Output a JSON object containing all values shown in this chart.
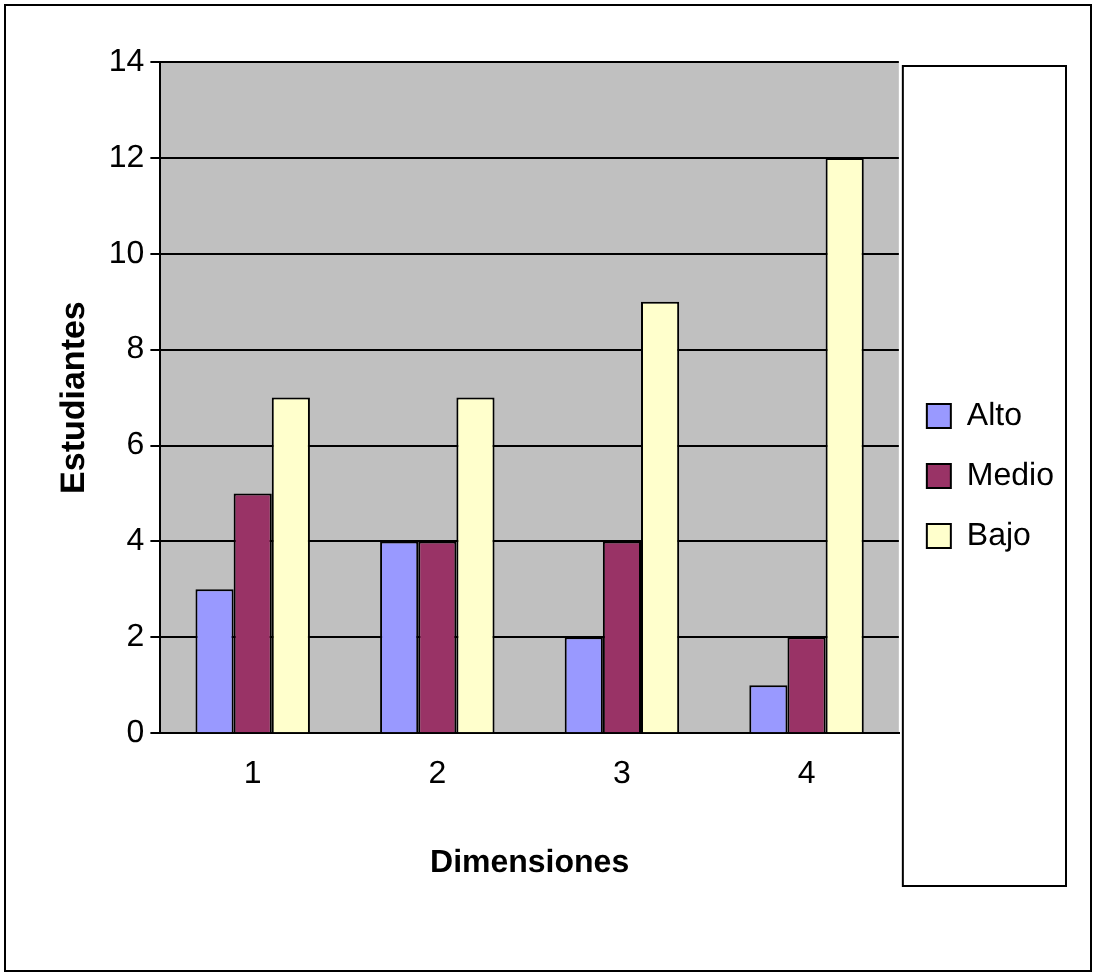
{
  "chart_data": {
    "type": "bar",
    "xlabel": "Dimensiones",
    "ylabel": "Estudiantes",
    "categories": [
      "1",
      "2",
      "3",
      "4"
    ],
    "series": [
      {
        "name": "Alto",
        "color": "#9999ff",
        "values": [
          3,
          4,
          2,
          1
        ]
      },
      {
        "name": "Medio",
        "color": "#993366",
        "values": [
          5,
          4,
          4,
          2
        ]
      },
      {
        "name": "Bajo",
        "color": "#ffffcc",
        "values": [
          7,
          7,
          9,
          12
        ]
      }
    ],
    "ylim": [
      0,
      14
    ],
    "yticks": [
      0,
      2,
      4,
      6,
      8,
      10,
      12,
      14
    ],
    "grid": "y",
    "legend": "right"
  }
}
